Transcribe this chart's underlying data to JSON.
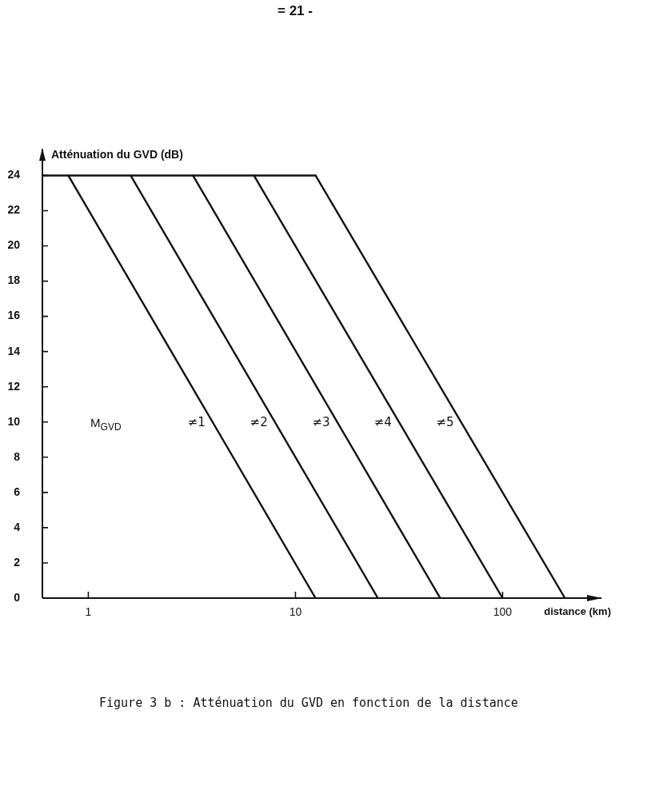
{
  "chart_data": {
    "type": "line",
    "title": "Figure 3 b : Atténuation du GVD en fonction de la distance",
    "xlabel": "distance (km)",
    "ylabel": "Atténuation du GVD (dB)",
    "annotations": [
      "= 21 -",
      "M$_{GVD}$"
    ],
    "series": [
      {
        "name": "≠1",
        "color": "#111111",
        "x": [
          0.8,
          12.5
        ],
        "values": [
          24,
          0
        ]
      },
      {
        "name": "≠2",
        "color": "#111111",
        "x": [
          1.6,
          25
        ],
        "values": [
          24,
          0
        ]
      },
      {
        "name": "≠3",
        "color": "#111111",
        "x": [
          3.2,
          50
        ],
        "values": [
          24,
          0
        ]
      },
      {
        "name": "≠4",
        "color": "#111111",
        "x": [
          6.3,
          100
        ],
        "values": [
          24,
          0
        ]
      },
      {
        "name": "≠5",
        "color": "#111111",
        "x": [
          12.5,
          200
        ],
        "values": [
          24,
          0
        ]
      },
      {
        "color": "#111111",
        "x": [
          0.6,
          12.5
        ],
        "values": [
          24,
          24
        ]
      }
    ],
    "xlim": [
      0.6,
      300
    ],
    "ylim": [
      0,
      25.5
    ],
    "xticks": [
      1,
      10,
      100
    ],
    "yticks": [
      0,
      2,
      4,
      6,
      8,
      10,
      12,
      14,
      16,
      18,
      20,
      22,
      24
    ],
    "log": "x",
    "marker": "none",
    "line_style": "solid"
  }
}
